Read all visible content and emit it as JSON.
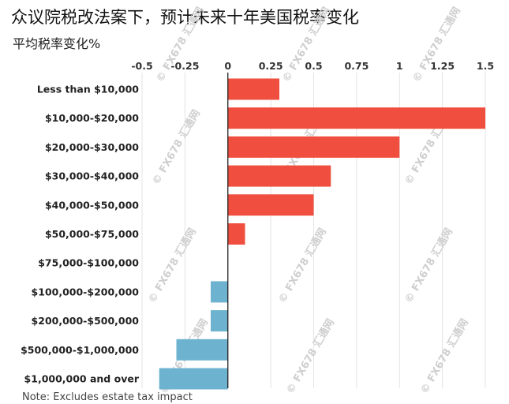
{
  "chart_data": {
    "type": "bar",
    "orientation": "horizontal",
    "title": "众议院税改法案下，预计未来十年美国税率变化",
    "subtitle": "平均税率变化%",
    "note": "Note: Excludes estate tax impact",
    "xlim": [
      -0.5,
      1.5
    ],
    "x_ticks": [
      "-0.5",
      "-0.25",
      "0",
      "0.25",
      "0.5",
      "0.75",
      "1",
      "1.25",
      "1.5"
    ],
    "grid": true,
    "categories": [
      "Less than $10,000",
      "$10,000-$20,000",
      "$20,000-$30,000",
      "$30,000-$40,000",
      "$40,000-$50,000",
      "$50,000-$75,000",
      "$75,000-$100,000",
      "$100,000-$200,000",
      "$200,000-$500,000",
      "$500,000-$1,000,000",
      "$1,000,000 and over"
    ],
    "values": [
      0.3,
      1.5,
      1.0,
      0.6,
      0.5,
      0.1,
      0.0,
      -0.1,
      -0.1,
      -0.3,
      -0.4
    ],
    "colors": {
      "positive": "#f04e3e",
      "negative": "#6db3d0",
      "grid": "#e3e3e3",
      "axis": "#222222"
    }
  },
  "watermark": "FX678 汇通网"
}
